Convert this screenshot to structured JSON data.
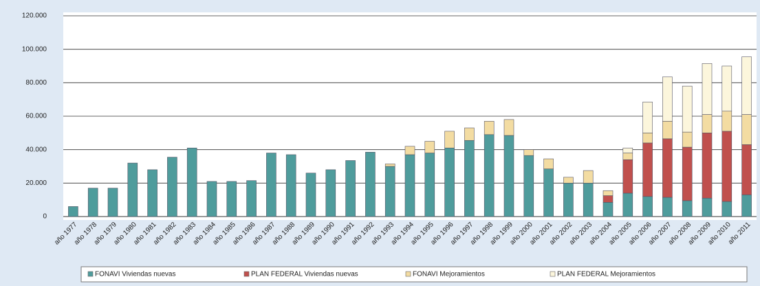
{
  "chart_data": {
    "type": "stacked-bar",
    "categories": [
      "año 1977",
      "año 1978",
      "año 1979",
      "año 1980",
      "año 1981",
      "año 1982",
      "año 1983",
      "año 1984",
      "año 1985",
      "año 1986",
      "año 1987",
      "año 1988",
      "año 1989",
      "año 1990",
      "año 1991",
      "año 1992",
      "año 1993",
      "año 1994",
      "año 1995",
      "año 1996",
      "año 1997",
      "año 1998",
      "año 1999",
      "año 2000",
      "año 2001",
      "año 2002",
      "año 2003",
      "año 2004",
      "año 2005",
      "año 2006",
      "año 2007",
      "año 2008",
      "año 2009",
      "año 2010",
      "año 2011"
    ],
    "series": [
      {
        "name": "FONAVI Viviendas nuevas",
        "color": "#4f9c9c",
        "values": [
          6000,
          17000,
          17000,
          32000,
          28000,
          35500,
          41000,
          21000,
          21000,
          21500,
          38000,
          37000,
          26000,
          28000,
          33500,
          38500,
          30000,
          37000,
          38000,
          41000,
          45500,
          49000,
          48500,
          36500,
          28500,
          20000,
          20000,
          8500,
          14000,
          12000,
          11500,
          9500,
          11000,
          9000,
          13000
        ]
      },
      {
        "name": "PLAN FEDERAL Viviendas nuevas",
        "color": "#c0504d",
        "values": [
          0,
          0,
          0,
          0,
          0,
          0,
          0,
          0,
          0,
          0,
          0,
          0,
          0,
          0,
          0,
          0,
          0,
          0,
          0,
          0,
          0,
          0,
          0,
          0,
          0,
          0,
          0,
          4000,
          20000,
          32000,
          35000,
          32000,
          39000,
          42000,
          30000
        ]
      },
      {
        "name": "FONAVI Mejoramientos",
        "color": "#f3dca2",
        "values": [
          0,
          0,
          0,
          0,
          0,
          0,
          0,
          0,
          0,
          0,
          0,
          0,
          0,
          0,
          0,
          0,
          1500,
          5000,
          7000,
          10000,
          7500,
          8000,
          9500,
          3500,
          6000,
          3500,
          7500,
          3000,
          4000,
          6000,
          10500,
          9000,
          11000,
          12000,
          18000
        ]
      },
      {
        "name": "PLAN FEDERAL Mejoramientos",
        "color": "#fcf6dc",
        "values": [
          0,
          0,
          0,
          0,
          0,
          0,
          0,
          0,
          0,
          0,
          0,
          0,
          0,
          0,
          0,
          0,
          0,
          0,
          0,
          0,
          0,
          0,
          0,
          0,
          0,
          0,
          0,
          0,
          3000,
          18500,
          26500,
          27500,
          30500,
          27000,
          34500
        ]
      }
    ],
    "ylim": [
      0,
      120000
    ],
    "yticks": [
      0,
      {
        "value": 20000,
        "label": "20.000"
      },
      {
        "value": 40000,
        "label": "40.000"
      },
      {
        "value": 60000,
        "label": "60.000"
      },
      {
        "value": 80000,
        "label": "80.000"
      },
      {
        "value": 100000,
        "label": "100.000"
      },
      {
        "value": 120000,
        "label": "120.000"
      }
    ],
    "grid": true
  }
}
